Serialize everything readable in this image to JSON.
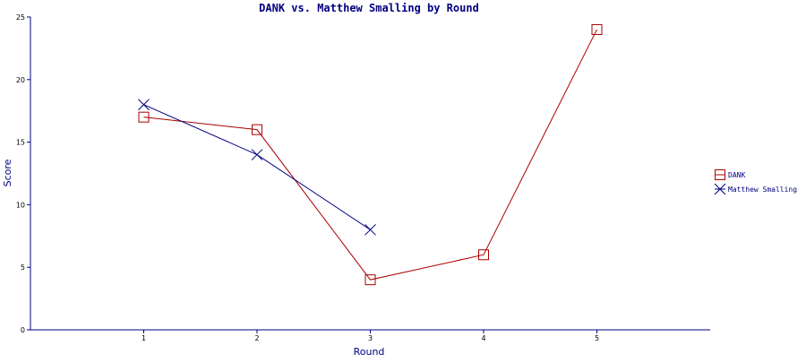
{
  "chart_data": {
    "type": "line",
    "title": "DANK vs. Matthew Smalling by Round",
    "xlabel": "Round",
    "ylabel": "Score",
    "x_ticks": [
      1,
      2,
      3,
      4,
      5
    ],
    "y_ticks": [
      0,
      5,
      10,
      15,
      20,
      25
    ],
    "xlim": [
      0,
      6
    ],
    "ylim": [
      0,
      25
    ],
    "grid": false,
    "legend_position": "right",
    "series": [
      {
        "name": "DANK",
        "color": "#aa0000",
        "marker": "square",
        "x": [
          1,
          2,
          3,
          4,
          5
        ],
        "values": [
          17,
          16,
          4,
          6,
          24
        ]
      },
      {
        "name": "Matthew Smalling",
        "color": "#000080",
        "marker": "x",
        "x": [
          1,
          2,
          3
        ],
        "values": [
          18,
          14,
          8
        ]
      }
    ]
  }
}
